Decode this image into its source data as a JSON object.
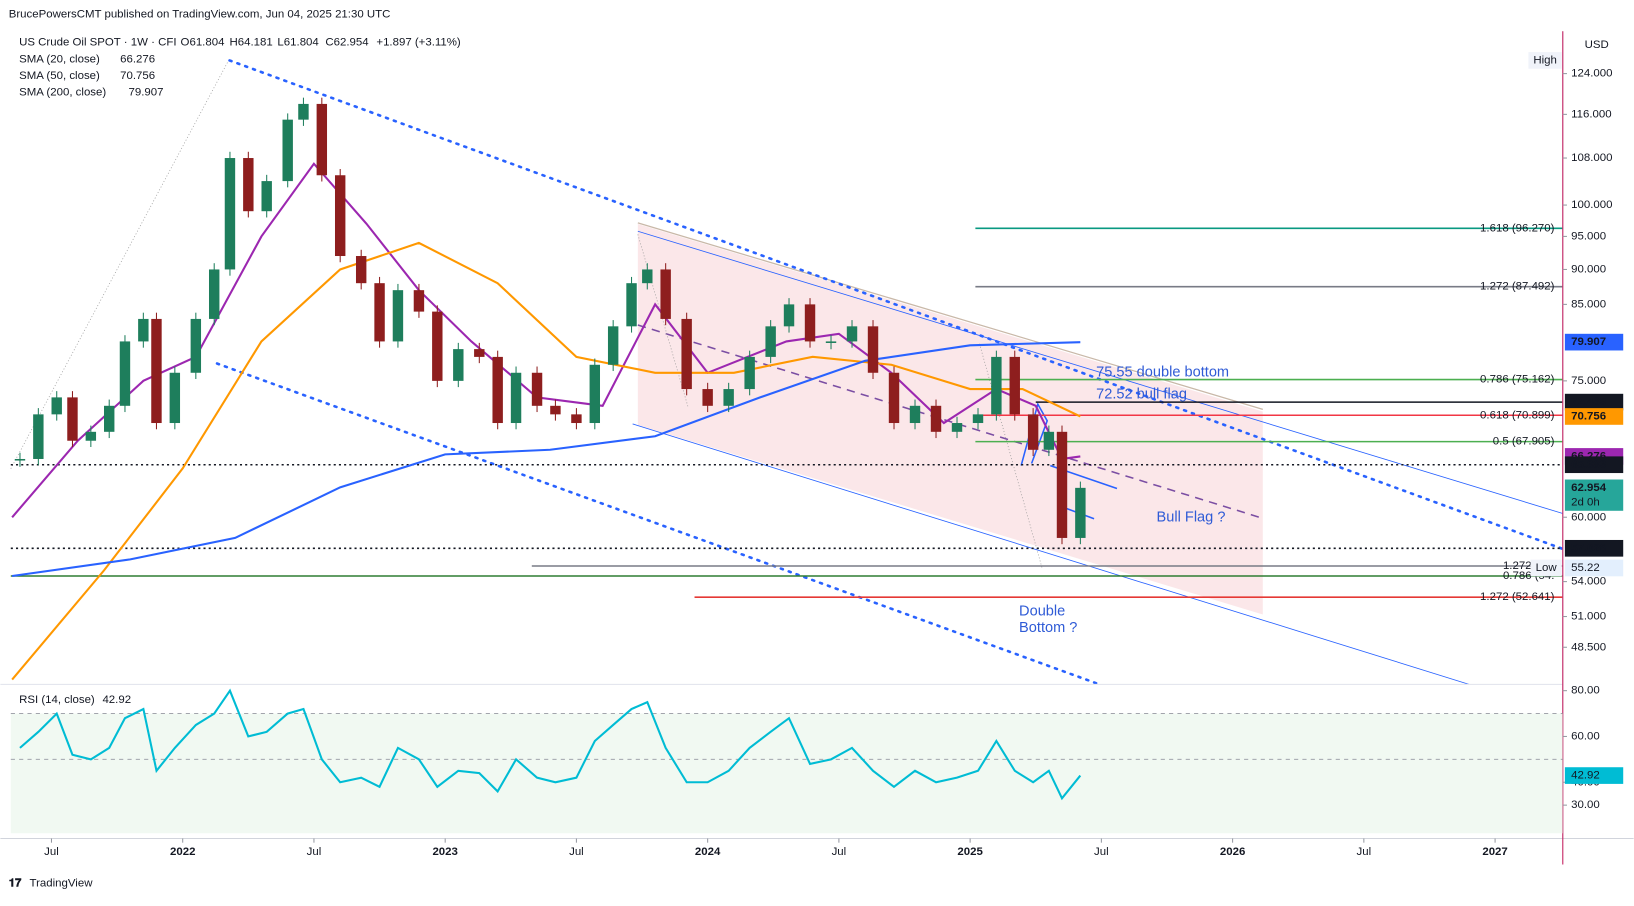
{
  "header": {
    "publisher": "BrucePowersCMT published on TradingView.com, Jun 04, 2025 21:30 UTC",
    "footer": "TradingView"
  },
  "chart_data": [
    {
      "type": "candlestick",
      "symbol": "US Crude Oil SPOT · 1W · CFI",
      "ohlc_labels": [
        "O61.804",
        "H64.181",
        "L61.804",
        "C62.954",
        "+1.897 (+3.11%)"
      ],
      "currency": "USD",
      "log_scale": true,
      "xlim": [
        2021.345,
        2027.258
      ],
      "xticks": [
        {
          "value": 2021.5,
          "label": "Jul"
        },
        2022,
        {
          "value": 2022.5,
          "label": "Jul"
        },
        2023,
        {
          "value": 2023.5,
          "label": "Jul"
        },
        2024,
        {
          "value": 2024.5,
          "label": "Jul"
        },
        2025,
        {
          "value": 2025.5,
          "label": "Jul"
        },
        2026,
        {
          "value": 2026.5,
          "label": "Jul"
        },
        2027
      ],
      "ylim": [
        45.8,
        132.9
      ],
      "yticks": [
        {
          "value": 124,
          "label": "124.000"
        },
        {
          "value": 116,
          "label": "116.000"
        },
        {
          "value": 108,
          "label": "108.000"
        },
        {
          "value": 100,
          "label": "100.000"
        },
        {
          "value": 95,
          "label": "95.000"
        },
        {
          "value": 90,
          "label": "90.000"
        },
        {
          "value": 85,
          "label": "85.000"
        },
        {
          "value": 75,
          "label": "75.000"
        },
        {
          "value": 60,
          "label": "60.000"
        },
        {
          "value": 54,
          "label": "54.000"
        },
        {
          "value": 51,
          "label": "51.000"
        },
        {
          "value": 48.5,
          "label": "48.500"
        }
      ],
      "x": [
        2021.38,
        2021.45,
        2021.52,
        2021.58,
        2021.65,
        2021.72,
        2021.78,
        2021.85,
        2021.9,
        2021.97,
        2022.05,
        2022.12,
        2022.18,
        2022.25,
        2022.32,
        2022.4,
        2022.46,
        2022.53,
        2022.6,
        2022.68,
        2022.75,
        2022.82,
        2022.9,
        2022.97,
        2023.05,
        2023.13,
        2023.2,
        2023.27,
        2023.35,
        2023.42,
        2023.5,
        2023.57,
        2023.64,
        2023.71,
        2023.77,
        2023.84,
        2023.92,
        2024.0,
        2024.08,
        2024.16,
        2024.24,
        2024.31,
        2024.39,
        2024.47,
        2024.55,
        2024.63,
        2024.71,
        2024.79,
        2024.87,
        2024.95,
        2025.03,
        2025.1,
        2025.17,
        2025.24,
        2025.3,
        2025.35,
        2025.42
      ],
      "values": [
        66,
        71,
        73,
        68,
        69,
        72,
        80,
        83,
        70,
        76,
        83,
        90,
        108,
        99,
        104,
        115,
        118,
        105,
        92,
        88,
        80,
        87,
        84,
        75,
        79,
        78,
        70,
        76,
        72,
        71,
        70,
        77,
        82,
        88,
        90,
        83,
        74,
        72,
        74,
        78,
        82,
        85,
        80,
        80,
        82,
        76,
        70,
        72,
        69,
        70,
        71,
        78,
        71,
        67,
        69,
        58,
        62.954
      ],
      "up_color": "#1e7e5c",
      "down_color": "#8e1e1e",
      "sma": [
        {
          "name": "SMA (20, close)",
          "last": 66.276,
          "color": "#9c27b0",
          "x": [
            2021.35,
            2021.6,
            2021.85,
            2022.05,
            2022.3,
            2022.5,
            2022.7,
            2022.9,
            2023.1,
            2023.35,
            2023.6,
            2023.8,
            2024.0,
            2024.3,
            2024.5,
            2024.7,
            2024.9,
            2025.1,
            2025.25,
            2025.35,
            2025.42
          ],
          "values": [
            60,
            68,
            75,
            78,
            95,
            107,
            97,
            87,
            80,
            73,
            72,
            85,
            76,
            80,
            81,
            76,
            70,
            74,
            72,
            66,
            66.276
          ]
        },
        {
          "name": "SMA (50, close)",
          "last": 70.756,
          "color": "#ff9800",
          "x": [
            2021.35,
            2021.7,
            2022.0,
            2022.3,
            2022.6,
            2022.9,
            2023.2,
            2023.5,
            2023.8,
            2024.1,
            2024.4,
            2024.7,
            2025.0,
            2025.2,
            2025.42
          ],
          "values": [
            46,
            55,
            65,
            80,
            90,
            94,
            88,
            78,
            76,
            76,
            78,
            77,
            74,
            74,
            70.756
          ]
        },
        {
          "name": "SMA (200, close)",
          "last": 79.907,
          "color": "#2962ff",
          "x": [
            2021.35,
            2021.8,
            2022.2,
            2022.6,
            2023.0,
            2023.4,
            2023.8,
            2024.2,
            2024.6,
            2025.0,
            2025.42
          ],
          "values": [
            54.5,
            56,
            58,
            63,
            66.5,
            67,
            68.5,
            73,
            77.5,
            79.5,
            79.907
          ]
        }
      ],
      "fib_levels": [
        {
          "label": "1.618 (96.270)",
          "value": 96.27,
          "color": "#089981",
          "start": 2025.02
        },
        {
          "label": "1.272 (87.492)",
          "value": 87.492,
          "color": "#787b86",
          "start": 2025.02
        },
        {
          "label": "0.786 (75.162)",
          "value": 75.162,
          "color": "#4caf50",
          "start": 2025.02
        },
        {
          "label": "0.618 (70.899)",
          "value": 70.899,
          "color": "#f23645",
          "start": 2025.02
        },
        {
          "label": "0.5 (67.905)",
          "value": 67.905,
          "color": "#4caf50",
          "start": 2025.02
        },
        {
          "label": "1.272 (55.",
          "value": 55.4,
          "color": "#787b86",
          "start": 2023.33
        },
        {
          "label": "0.786 (54.",
          "value": 54.5,
          "color": "#2e7d32",
          "start": 2021.345
        },
        {
          "label": "1.272 (52.641)",
          "value": 52.641,
          "color": "#e53935",
          "start": 2023.95
        }
      ],
      "levels": [
        {
          "value": 65.383,
          "style": "dotted",
          "start": 2021.345
        },
        {
          "value": 57.026,
          "style": "dotted",
          "start": 2021.345
        },
        {
          "value": 72.435,
          "style": "solid",
          "start": 2025.25
        }
      ],
      "price_tags": [
        {
          "value": 79.907,
          "color": "#2962ff"
        },
        {
          "value": 72.435,
          "color": "#131722"
        },
        {
          "value": 70.756,
          "color": "#ff9800"
        },
        {
          "value": 66.276,
          "color": "#9c27b0"
        },
        {
          "value": 65.383,
          "color": "#131722"
        },
        {
          "value": 62.954,
          "color": "#26a69a",
          "sub": "2d 0h"
        },
        {
          "value": 57.026,
          "color": "#131722"
        }
      ],
      "high_label": "High",
      "low_label": "Low",
      "low_value": 55.22,
      "annotations": [
        "75.55 double bottom",
        "72.52 bull flag",
        "Bull Flag ?",
        "Double",
        "Bottom ?"
      ]
    },
    {
      "type": "line",
      "name": "RSI (14, close)",
      "last": 42.92,
      "color": "#00bcd4",
      "ylim": [
        17.7,
        81.4
      ],
      "yticks": [
        {
          "value": 80,
          "label": "80.00"
        },
        {
          "value": 60,
          "label": "60.00"
        },
        {
          "value": 40,
          "label": "40.00"
        },
        {
          "value": 30,
          "label": "30.00"
        }
      ],
      "band": [
        70,
        50
      ],
      "values": [
        55,
        62,
        70,
        52,
        50,
        55,
        68,
        72,
        45,
        55,
        65,
        70,
        80,
        60,
        62,
        70,
        72,
        50,
        40,
        42,
        38,
        55,
        50,
        38,
        45,
        44,
        36,
        50,
        42,
        40,
        42,
        58,
        65,
        72,
        75,
        55,
        40,
        40,
        45,
        55,
        62,
        68,
        48,
        50,
        55,
        45,
        38,
        45,
        40,
        42,
        45,
        58,
        45,
        40,
        45,
        33,
        42.92
      ]
    }
  ]
}
